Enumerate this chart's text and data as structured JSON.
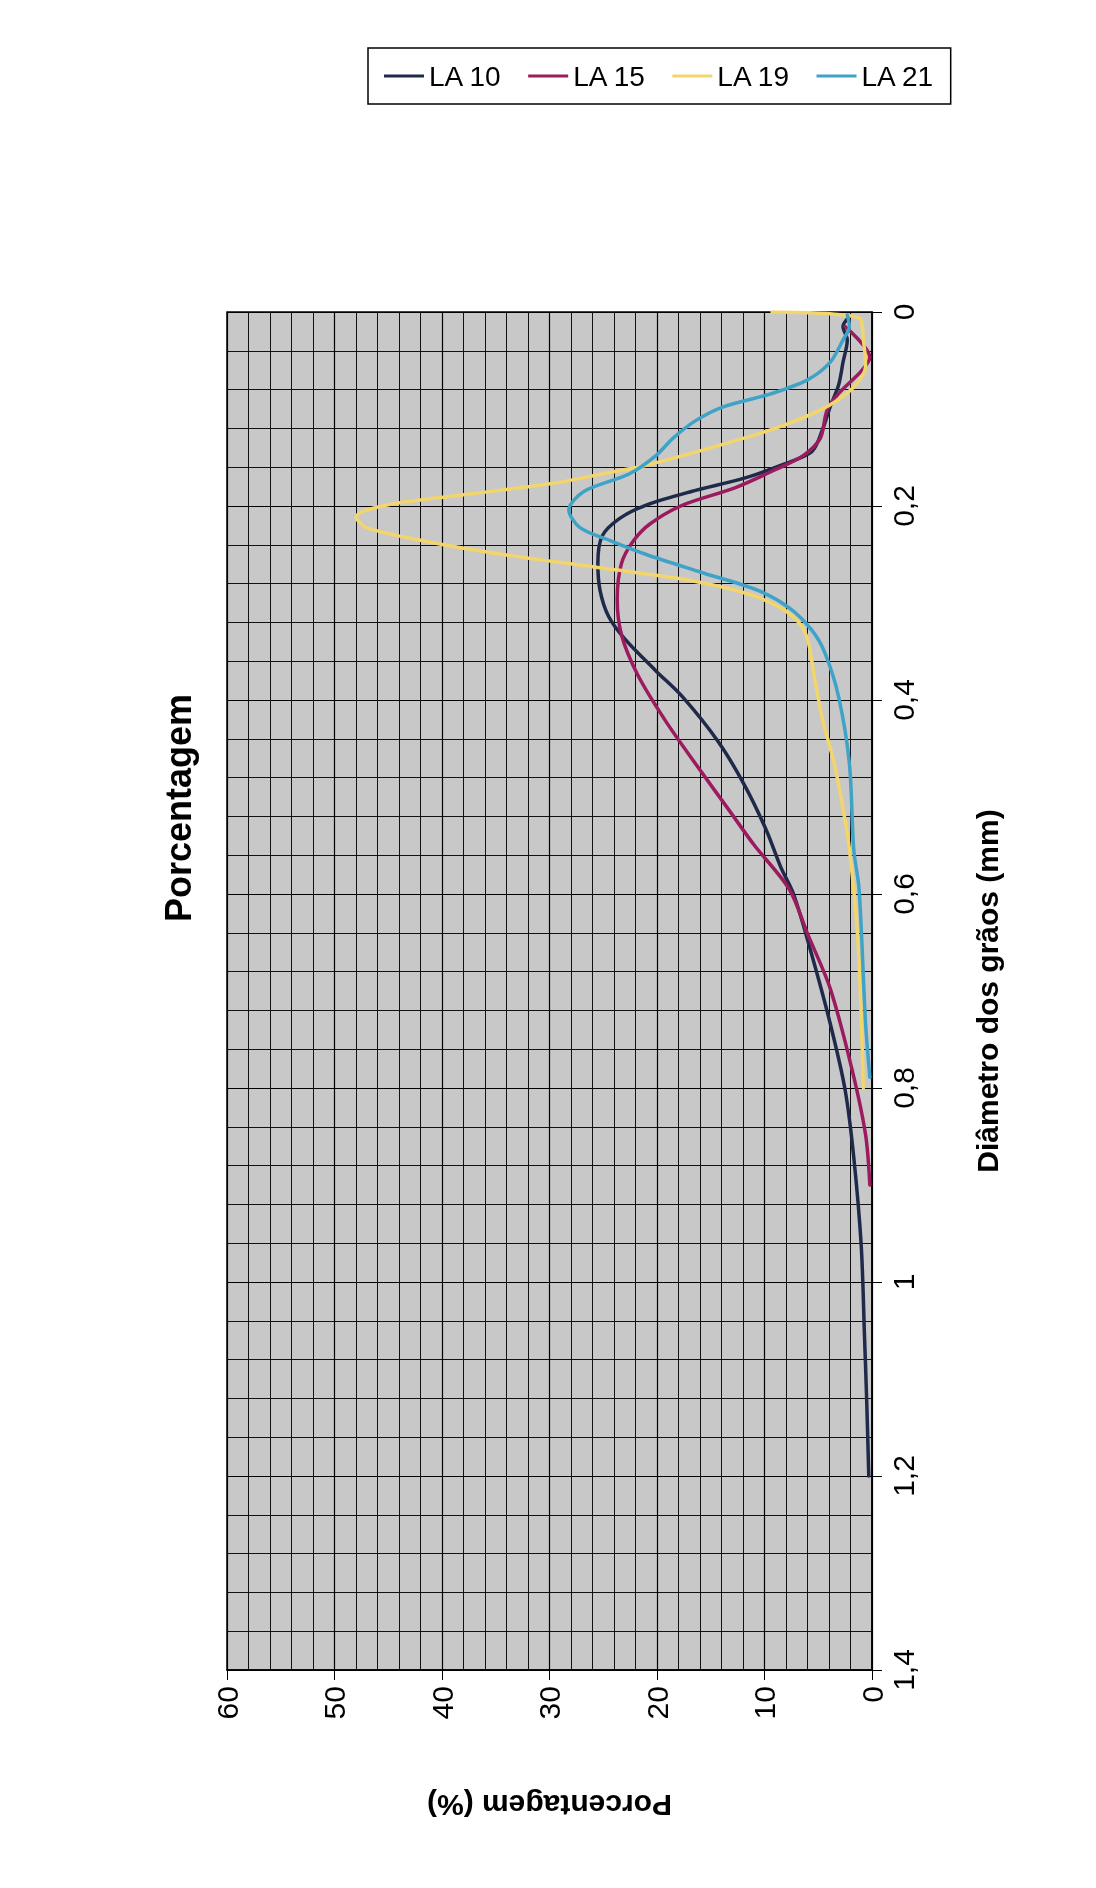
{
  "chart_data": {
    "type": "line",
    "orientation": "horizontal",
    "title": "Porcentagem",
    "ylabel": "Diâmetro dos grãos (mm)",
    "xlabel": "Porcentagem (%)",
    "ylim": [
      1.4,
      0
    ],
    "yticks": [
      {
        "value": 0,
        "label": "0"
      },
      {
        "value": 0.2,
        "label": "0,2"
      },
      {
        "value": 0.4,
        "label": "0,4"
      },
      {
        "value": 0.6,
        "label": "0,6"
      },
      {
        "value": 0.8,
        "label": "0,8"
      },
      {
        "value": 1,
        "label": "1"
      },
      {
        "value": 1.2,
        "label": "1,2"
      },
      {
        "value": 1.4,
        "label": "1,4"
      }
    ],
    "xlim": [
      60,
      0
    ],
    "xticks": [
      60,
      50,
      40,
      30,
      20,
      10,
      0
    ],
    "grid": true,
    "legend": "top",
    "series": [
      {
        "name": "LA 10",
        "color": "#1f2a4a",
        "x": [
          0.005,
          0.015,
          0.029,
          0.052,
          0.075,
          0.098,
          0.121,
          0.144,
          0.158,
          0.171,
          0.185,
          0.199,
          0.213,
          0.231,
          0.259,
          0.287,
          0.314,
          0.337,
          0.37,
          0.397,
          0.443,
          0.489,
          0.535,
          0.572,
          0.6,
          0.655,
          0.733,
          0.802,
          0.871,
          0.963,
          1.055,
          1.12,
          1.2
        ],
        "values": [
          2.1,
          2.7,
          2.3,
          2.7,
          3.1,
          3.9,
          4.6,
          5.6,
          8.5,
          11.8,
          16.8,
          21,
          23.5,
          25.1,
          25.5,
          25.3,
          24.5,
          23,
          20.1,
          17.6,
          14.3,
          11.8,
          9.8,
          8.5,
          7.3,
          5.8,
          3.9,
          2.5,
          1.7,
          1.0,
          0.7,
          0.5,
          0.3
        ]
      },
      {
        "name": "LA 15",
        "color": "#9c1a5e",
        "x": [
          0.015,
          0.047,
          0.061,
          0.084,
          0.102,
          0.13,
          0.148,
          0.162,
          0.181,
          0.199,
          0.218,
          0.236,
          0.259,
          0.296,
          0.333,
          0.374,
          0.42,
          0.466,
          0.512,
          0.549,
          0.595,
          0.641,
          0.697,
          0.779,
          0.848,
          0.9
        ],
        "values": [
          2.5,
          0.2,
          1.0,
          3.1,
          4.2,
          4.8,
          6.4,
          8.9,
          12.7,
          17.6,
          20.6,
          22.2,
          23.3,
          23.7,
          23.3,
          21.8,
          19.3,
          16.4,
          13.4,
          11.0,
          7.7,
          6.0,
          3.9,
          1.9,
          0.6,
          0.2
        ]
      },
      {
        "name": "LA 19",
        "color": "#f2d56b",
        "x": [
          0,
          0.006,
          0.029,
          0.056,
          0.075,
          0.093,
          0.107,
          0.121,
          0.139,
          0.158,
          0.167,
          0.176,
          0.188,
          0.199,
          0.211,
          0.222,
          0.236,
          0.25,
          0.264,
          0.277,
          0.291,
          0.305,
          0.319,
          0.337,
          0.374,
          0.42,
          0.466,
          0.512,
          0.554,
          0.65,
          0.8
        ],
        "values": [
          9.3,
          1.2,
          0.8,
          0.6,
          1.5,
          3.5,
          6.0,
          9.3,
          14.7,
          21,
          25.1,
          29.3,
          37.6,
          45.1,
          48.0,
          47.1,
          41.7,
          34.3,
          25.1,
          16.8,
          11.4,
          8.5,
          6.9,
          6.0,
          5.4,
          4.6,
          3.5,
          2.7,
          2.1,
          1.3,
          0.8
        ]
      },
      {
        "name": "LA 21",
        "color": "#3fa3c8",
        "x": [
          0.003,
          0.015,
          0.029,
          0.052,
          0.07,
          0.084,
          0.098,
          0.112,
          0.13,
          0.148,
          0.167,
          0.185,
          0.204,
          0.222,
          0.236,
          0.25,
          0.268,
          0.287,
          0.305,
          0.328,
          0.351,
          0.397,
          0.466,
          0.554,
          0.595,
          0.733,
          0.789
        ],
        "values": [
          2.3,
          2.1,
          2.7,
          3.9,
          6.0,
          9.3,
          13.9,
          16.4,
          18.5,
          20.1,
          22.6,
          26.8,
          28.2,
          27.2,
          24.3,
          21,
          16,
          10.6,
          7.7,
          5.6,
          4.4,
          3.1,
          2.1,
          1.7,
          1.2,
          0.6,
          0.2
        ]
      }
    ]
  }
}
